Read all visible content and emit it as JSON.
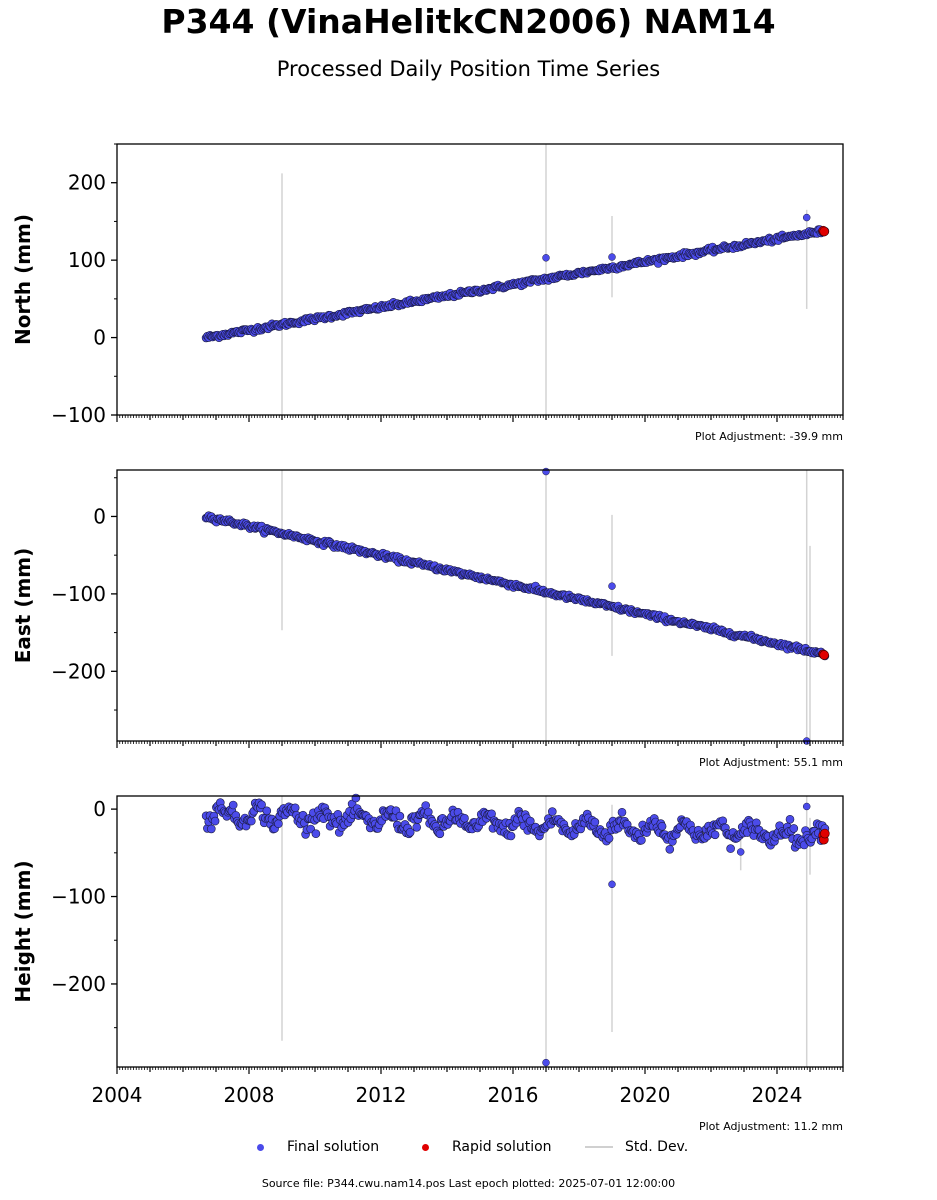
{
  "header": {
    "title": "P344 (VinaHelitkCN2006) NAM14",
    "subtitle": "Processed Daily Position Time Series"
  },
  "chart_data": [
    {
      "type": "scatter",
      "ylabel": "North (mm)",
      "ylim": [
        -100,
        250
      ],
      "yticks": [
        -100,
        0,
        100,
        200
      ],
      "xlim": [
        2004,
        2026
      ],
      "adjustment": "Plot Adjustment: -39.9 mm",
      "trend": {
        "start": [
          2006.7,
          0
        ],
        "end": [
          2025.45,
          138
        ],
        "noise": 1.5
      },
      "outliers": [
        [
          2017.0,
          103
        ],
        [
          2019.0,
          104
        ],
        [
          2024.9,
          155
        ]
      ],
      "std_dev_bars": [
        [
          2009.0,
          -100,
          212
        ],
        [
          2017.0,
          -100,
          250
        ],
        [
          2019.0,
          52,
          157
        ],
        [
          2024.9,
          37,
          165
        ]
      ],
      "rapid": [
        [
          2025.4,
          138
        ],
        [
          2025.43,
          137
        ]
      ],
      "colors": {
        "final": "#4b4bea",
        "rapid": "#e00000",
        "std": "#d3d3d3"
      }
    },
    {
      "type": "scatter",
      "ylabel": "East (mm)",
      "ylim": [
        -290,
        60
      ],
      "yticks": [
        -200,
        -100,
        0
      ],
      "xlim": [
        2004,
        2026
      ],
      "adjustment": "Plot Adjustment: 55.1 mm",
      "trend": {
        "start": [
          2006.7,
          0
        ],
        "end": [
          2025.45,
          -178
        ],
        "noise": 1.5
      },
      "outliers": [
        [
          2017.0,
          58
        ],
        [
          2019.0,
          -90
        ],
        [
          2024.9,
          -290
        ]
      ],
      "std_dev_bars": [
        [
          2009.0,
          -147,
          60
        ],
        [
          2017.0,
          -290,
          60
        ],
        [
          2019.0,
          -180,
          2
        ],
        [
          2024.9,
          -290,
          60
        ],
        [
          2025.0,
          -290,
          -38
        ]
      ],
      "rapid": [
        [
          2025.4,
          -178
        ],
        [
          2025.43,
          -179
        ]
      ],
      "colors": {
        "final": "#4b4bea",
        "rapid": "#e00000",
        "std": "#d3d3d3"
      }
    },
    {
      "type": "scatter",
      "ylabel": "Height (mm)",
      "ylim": [
        -295,
        15
      ],
      "yticks": [
        -200,
        -100,
        0
      ],
      "xlim": [
        2004,
        2026
      ],
      "xticks": [
        2004,
        2008,
        2012,
        2016,
        2020,
        2024
      ],
      "adjustment": "Plot Adjustment: 11.2 mm",
      "trend": {
        "start": [
          2006.7,
          -5
        ],
        "end": [
          2025.45,
          -30
        ],
        "noise": 10
      },
      "outliers": [
        [
          2017.0,
          -290
        ],
        [
          2019.0,
          -86
        ],
        [
          2022.9,
          -49
        ],
        [
          2024.9,
          3
        ]
      ],
      "std_dev_bars": [
        [
          2009.0,
          -265,
          15
        ],
        [
          2017.0,
          -295,
          15
        ],
        [
          2019.0,
          -255,
          5
        ],
        [
          2022.9,
          -70,
          -30
        ],
        [
          2024.9,
          -295,
          15
        ],
        [
          2025.0,
          -75,
          -10
        ]
      ],
      "rapid": [
        [
          2025.4,
          -30
        ],
        [
          2025.42,
          -35
        ],
        [
          2025.45,
          -28
        ]
      ],
      "colors": {
        "final": "#4b4bea",
        "rapid": "#e00000",
        "std": "#d3d3d3"
      }
    }
  ],
  "legend": {
    "final": "Final solution",
    "rapid": "Rapid solution",
    "std": "Std. Dev."
  },
  "footer": {
    "source": "Source file: P344.cwu.nam14.pos  Last epoch plotted: 2025-07-01 12:00:00"
  }
}
